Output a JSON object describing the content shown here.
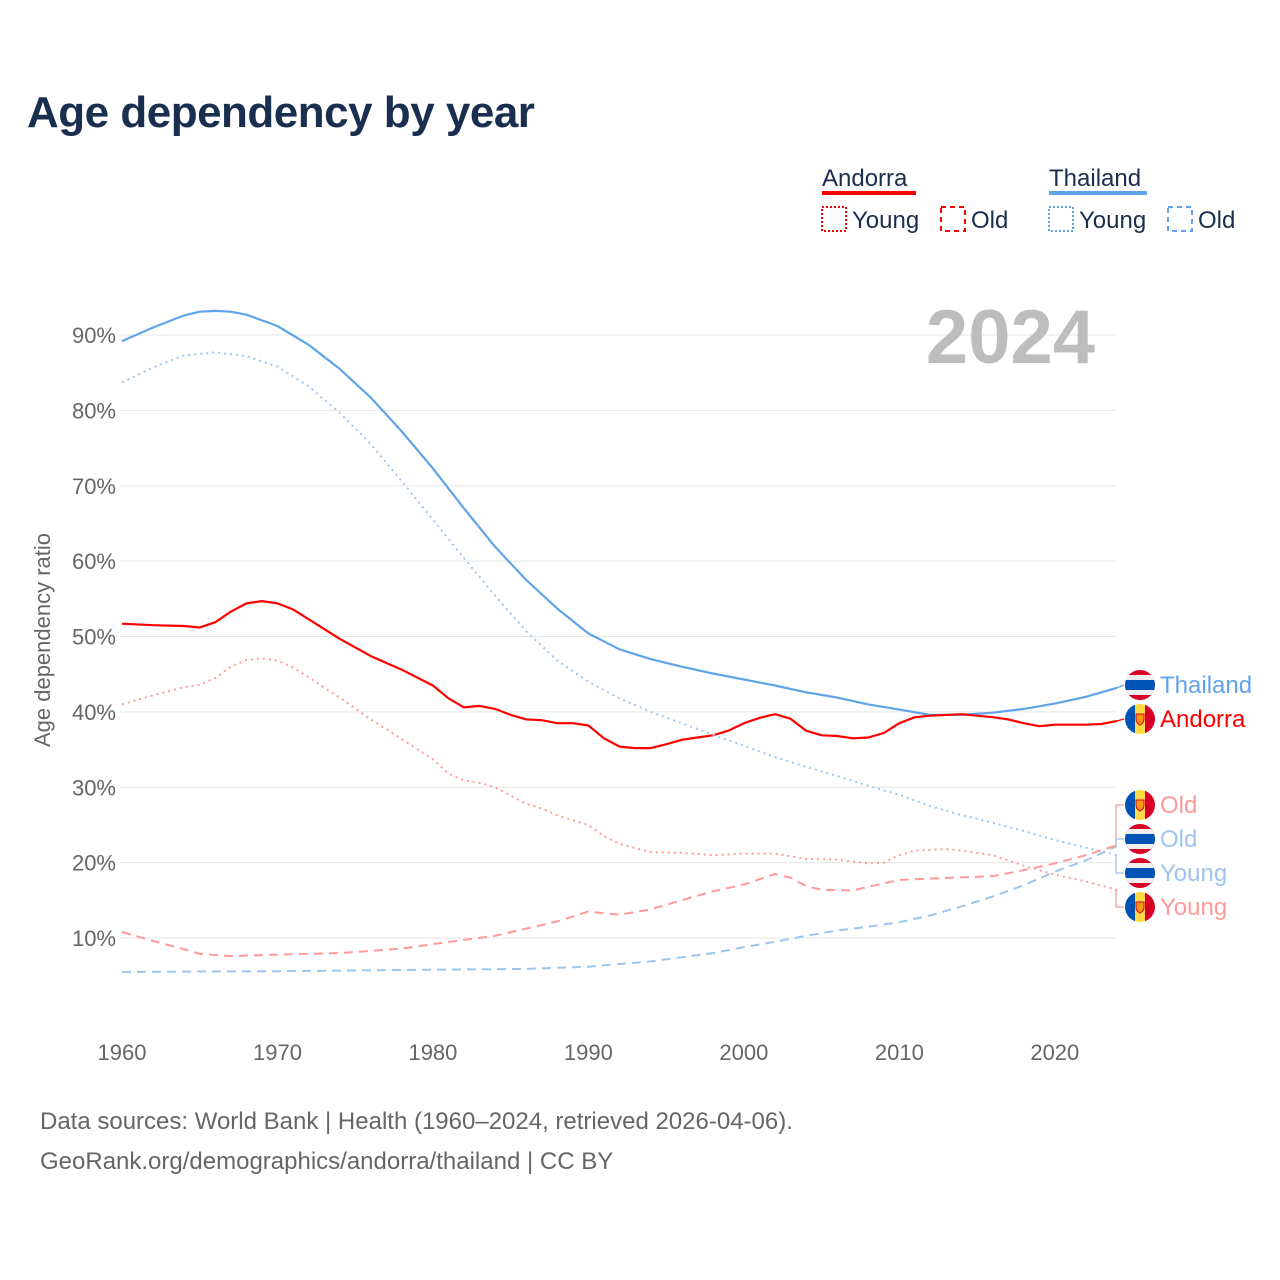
{
  "title": "Age dependency by year",
  "year_badge": "2024",
  "footer": {
    "line1": "Data sources: World Bank | Health (1960–2024, retrieved 2026-04-06).",
    "line2": "GeoRank.org/demographics/andorra/thailand | CC BY"
  },
  "legend": {
    "groups": [
      {
        "country": "Andorra",
        "color": "#ff0000",
        "items": [
          "Young",
          "Old"
        ]
      },
      {
        "country": "Thailand",
        "color": "#5fa4ea",
        "items": [
          "Young",
          "Old"
        ]
      }
    ]
  },
  "end_labels": [
    {
      "text": "Thailand",
      "flag": "thailand-flag-icon",
      "color": "#5fa4ea"
    },
    {
      "text": "Andorra",
      "flag": "andorra-flag-icon",
      "color": "#ff0000"
    },
    {
      "text": "Old",
      "flag": "andorra-flag-icon",
      "color": "#ff9a9a"
    },
    {
      "text": "Old",
      "flag": "thailand-flag-icon",
      "color": "#9ec5f0"
    },
    {
      "text": "Young",
      "flag": "thailand-flag-icon",
      "color": "#9ec5f0"
    },
    {
      "text": "Young",
      "flag": "andorra-flag-icon",
      "color": "#ff9a9a"
    }
  ],
  "chart_data": {
    "type": "line",
    "title": "Age dependency by year",
    "xlabel": "",
    "ylabel": "Age dependency ratio",
    "xlim": [
      1960,
      2024
    ],
    "ylim": [
      0,
      90
    ],
    "x_ticks": [
      "1960",
      "1970",
      "1980",
      "1990",
      "2000",
      "2010",
      "2020"
    ],
    "y_ticks": [
      "10%",
      "20%",
      "30%",
      "40%",
      "50%",
      "60%",
      "70%",
      "80%",
      "90%"
    ],
    "grid": true,
    "legend_position": "top-right",
    "series": [
      {
        "name": "Thailand",
        "style": "solid",
        "color": "#5fa4ea",
        "points": [
          [
            1960,
            89.2
          ],
          [
            1962,
            91.0
          ],
          [
            1964,
            92.6
          ],
          [
            1965,
            93.1
          ],
          [
            1966,
            93.2
          ],
          [
            1967,
            93.1
          ],
          [
            1968,
            92.7
          ],
          [
            1970,
            91.2
          ],
          [
            1972,
            88.7
          ],
          [
            1974,
            85.5
          ],
          [
            1976,
            81.7
          ],
          [
            1978,
            77.2
          ],
          [
            1980,
            72.3
          ],
          [
            1982,
            67.0
          ],
          [
            1984,
            61.9
          ],
          [
            1986,
            57.5
          ],
          [
            1988,
            53.7
          ],
          [
            1990,
            50.4
          ],
          [
            1992,
            48.3
          ],
          [
            1994,
            47.0
          ],
          [
            1996,
            46.0
          ],
          [
            1998,
            45.1
          ],
          [
            2000,
            44.3
          ],
          [
            2002,
            43.5
          ],
          [
            2004,
            42.6
          ],
          [
            2006,
            41.9
          ],
          [
            2008,
            41.0
          ],
          [
            2010,
            40.3
          ],
          [
            2012,
            39.6
          ],
          [
            2014,
            39.6
          ],
          [
            2016,
            39.9
          ],
          [
            2018,
            40.4
          ],
          [
            2020,
            41.1
          ],
          [
            2022,
            42.0
          ],
          [
            2024,
            43.2
          ]
        ]
      },
      {
        "name": "Andorra",
        "style": "solid",
        "color": "#ff0000",
        "points": [
          [
            1960,
            51.7
          ],
          [
            1962,
            51.5
          ],
          [
            1964,
            51.4
          ],
          [
            1965,
            51.2
          ],
          [
            1966,
            51.9
          ],
          [
            1967,
            53.3
          ],
          [
            1968,
            54.4
          ],
          [
            1969,
            54.7
          ],
          [
            1970,
            54.4
          ],
          [
            1971,
            53.6
          ],
          [
            1972,
            52.3
          ],
          [
            1974,
            49.7
          ],
          [
            1976,
            47.4
          ],
          [
            1978,
            45.6
          ],
          [
            1980,
            43.5
          ],
          [
            1981,
            41.8
          ],
          [
            1982,
            40.6
          ],
          [
            1983,
            40.8
          ],
          [
            1984,
            40.4
          ],
          [
            1985,
            39.6
          ],
          [
            1986,
            39.0
          ],
          [
            1987,
            38.9
          ],
          [
            1988,
            38.5
          ],
          [
            1989,
            38.5
          ],
          [
            1990,
            38.2
          ],
          [
            1991,
            36.5
          ],
          [
            1992,
            35.4
          ],
          [
            1993,
            35.2
          ],
          [
            1994,
            35.2
          ],
          [
            1995,
            35.7
          ],
          [
            1996,
            36.3
          ],
          [
            1997,
            36.6
          ],
          [
            1998,
            36.9
          ],
          [
            1999,
            37.5
          ],
          [
            2000,
            38.5
          ],
          [
            2001,
            39.2
          ],
          [
            2002,
            39.7
          ],
          [
            2003,
            39.1
          ],
          [
            2004,
            37.5
          ],
          [
            2005,
            36.9
          ],
          [
            2006,
            36.8
          ],
          [
            2007,
            36.5
          ],
          [
            2008,
            36.6
          ],
          [
            2009,
            37.2
          ],
          [
            2010,
            38.5
          ],
          [
            2011,
            39.3
          ],
          [
            2012,
            39.5
          ],
          [
            2014,
            39.7
          ],
          [
            2016,
            39.3
          ],
          [
            2017,
            39.0
          ],
          [
            2018,
            38.5
          ],
          [
            2019,
            38.1
          ],
          [
            2020,
            38.3
          ],
          [
            2022,
            38.3
          ],
          [
            2023,
            38.4
          ],
          [
            2024,
            38.8
          ]
        ]
      },
      {
        "name": "Thailand Young",
        "style": "dotted",
        "color": "#9ec5f0",
        "points": [
          [
            1960,
            83.7
          ],
          [
            1962,
            85.7
          ],
          [
            1964,
            87.3
          ],
          [
            1966,
            87.7
          ],
          [
            1968,
            87.2
          ],
          [
            1970,
            85.8
          ],
          [
            1972,
            83.2
          ],
          [
            1974,
            79.7
          ],
          [
            1976,
            75.5
          ],
          [
            1978,
            70.6
          ],
          [
            1980,
            65.5
          ],
          [
            1982,
            60.4
          ],
          [
            1984,
            55.4
          ],
          [
            1986,
            50.7
          ],
          [
            1988,
            46.8
          ],
          [
            1990,
            44.0
          ],
          [
            1992,
            41.8
          ],
          [
            1994,
            40.0
          ],
          [
            1996,
            38.5
          ],
          [
            1998,
            37.0
          ],
          [
            2000,
            35.5
          ],
          [
            2002,
            34.0
          ],
          [
            2004,
            32.7
          ],
          [
            2006,
            31.5
          ],
          [
            2008,
            30.2
          ],
          [
            2010,
            29.0
          ],
          [
            2012,
            27.5
          ],
          [
            2014,
            26.3
          ],
          [
            2016,
            25.3
          ],
          [
            2018,
            24.2
          ],
          [
            2020,
            23.0
          ],
          [
            2022,
            22.0
          ],
          [
            2024,
            21.0
          ]
        ]
      },
      {
        "name": "Thailand Old",
        "style": "dashed",
        "color": "#9ec5f0",
        "points": [
          [
            1960,
            5.5
          ],
          [
            1970,
            5.6
          ],
          [
            1980,
            5.8
          ],
          [
            1986,
            5.9
          ],
          [
            1990,
            6.2
          ],
          [
            1994,
            6.9
          ],
          [
            1998,
            8.0
          ],
          [
            2000,
            8.8
          ],
          [
            2002,
            9.5
          ],
          [
            2004,
            10.3
          ],
          [
            2006,
            11.0
          ],
          [
            2008,
            11.5
          ],
          [
            2010,
            12.1
          ],
          [
            2012,
            13.0
          ],
          [
            2014,
            14.2
          ],
          [
            2016,
            15.5
          ],
          [
            2018,
            17.0
          ],
          [
            2020,
            18.8
          ],
          [
            2022,
            20.3
          ],
          [
            2024,
            22.2
          ]
        ]
      },
      {
        "name": "Andorra Young",
        "style": "dotted",
        "color": "#ff9a9a",
        "points": [
          [
            1960,
            41.0
          ],
          [
            1962,
            42.2
          ],
          [
            1964,
            43.3
          ],
          [
            1965,
            43.6
          ],
          [
            1966,
            44.5
          ],
          [
            1967,
            46.0
          ],
          [
            1968,
            46.9
          ],
          [
            1969,
            47.1
          ],
          [
            1970,
            46.8
          ],
          [
            1971,
            45.9
          ],
          [
            1972,
            44.6
          ],
          [
            1974,
            41.9
          ],
          [
            1976,
            39.0
          ],
          [
            1978,
            36.4
          ],
          [
            1980,
            33.7
          ],
          [
            1981,
            31.8
          ],
          [
            1982,
            30.9
          ],
          [
            1983,
            30.6
          ],
          [
            1984,
            30.0
          ],
          [
            1985,
            28.9
          ],
          [
            1986,
            27.8
          ],
          [
            1987,
            27.2
          ],
          [
            1988,
            26.3
          ],
          [
            1990,
            25.0
          ],
          [
            1991,
            23.5
          ],
          [
            1992,
            22.5
          ],
          [
            1994,
            21.4
          ],
          [
            1996,
            21.3
          ],
          [
            1998,
            21.0
          ],
          [
            2000,
            21.2
          ],
          [
            2002,
            21.2
          ],
          [
            2004,
            20.5
          ],
          [
            2006,
            20.4
          ],
          [
            2008,
            19.9
          ],
          [
            2009,
            20.0
          ],
          [
            2010,
            21.0
          ],
          [
            2011,
            21.6
          ],
          [
            2013,
            21.8
          ],
          [
            2014,
            21.6
          ],
          [
            2016,
            21.0
          ],
          [
            2018,
            19.6
          ],
          [
            2020,
            18.4
          ],
          [
            2022,
            17.5
          ],
          [
            2024,
            16.4
          ]
        ]
      },
      {
        "name": "Andorra Old",
        "style": "dashed",
        "color": "#ff9a9a",
        "points": [
          [
            1960,
            10.8
          ],
          [
            1962,
            9.6
          ],
          [
            1964,
            8.5
          ],
          [
            1965,
            7.9
          ],
          [
            1967,
            7.6
          ],
          [
            1970,
            7.8
          ],
          [
            1974,
            8.0
          ],
          [
            1978,
            8.6
          ],
          [
            1980,
            9.2
          ],
          [
            1984,
            10.3
          ],
          [
            1988,
            12.2
          ],
          [
            1990,
            13.5
          ],
          [
            1992,
            13.1
          ],
          [
            1994,
            13.8
          ],
          [
            1996,
            15.0
          ],
          [
            1998,
            16.2
          ],
          [
            2000,
            17.1
          ],
          [
            2002,
            18.5
          ],
          [
            2003,
            18.0
          ],
          [
            2004,
            16.9
          ],
          [
            2005,
            16.4
          ],
          [
            2007,
            16.3
          ],
          [
            2008,
            16.8
          ],
          [
            2010,
            17.7
          ],
          [
            2012,
            17.9
          ],
          [
            2016,
            18.2
          ],
          [
            2018,
            19.0
          ],
          [
            2020,
            19.9
          ],
          [
            2022,
            21.0
          ],
          [
            2024,
            22.3
          ]
        ]
      }
    ]
  }
}
